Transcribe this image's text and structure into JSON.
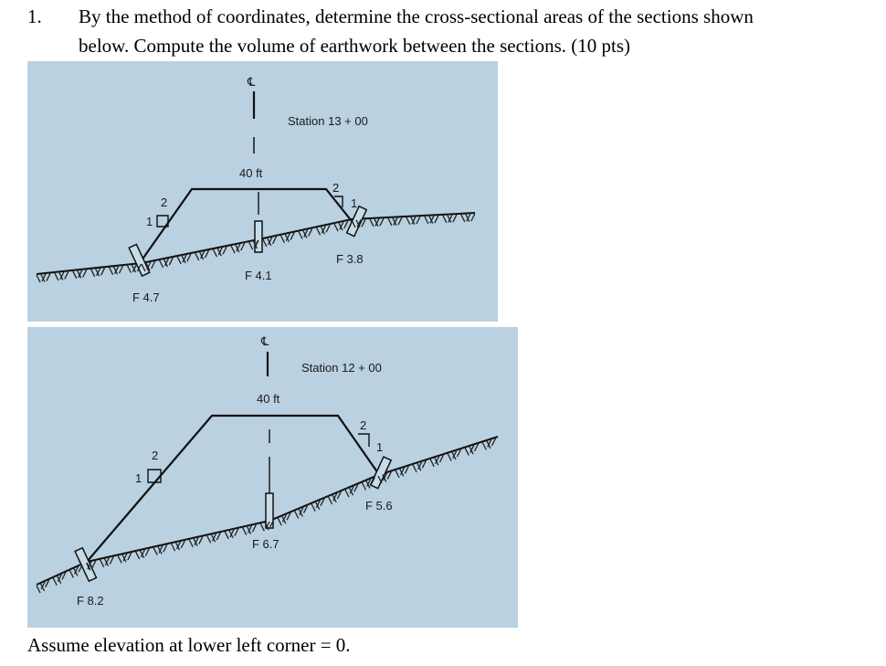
{
  "problem": {
    "number": "1.",
    "line1": "By the method of coordinates, determine the cross-sectional areas of the sections shown",
    "line2": "below.  Compute the volume of earthwork between the sections. (10 pts)",
    "footer": "Assume elevation at lower left corner = 0."
  },
  "figure1": {
    "centerline_symbol": "℄",
    "station": "Station 13 + 00",
    "width_label": "40 ft",
    "slope_left_run": "2",
    "slope_left_rise": "1",
    "slope_right_run": "2",
    "slope_right_rise": "1",
    "fill_left": "F 4.7",
    "fill_center": "F 4.1",
    "fill_right": "F 3.8"
  },
  "figure2": {
    "centerline_symbol": "℄",
    "station": "Station 12 + 00",
    "width_label": "40 ft",
    "slope_left_run": "2",
    "slope_left_rise": "1",
    "slope_right_run": "2",
    "slope_right_rise": "1",
    "fill_left": "F 8.2",
    "fill_center": "F 6.7",
    "fill_right": "F 5.6"
  },
  "colors": {
    "figure_background": "#b9d1e1",
    "linework": "#111111"
  }
}
